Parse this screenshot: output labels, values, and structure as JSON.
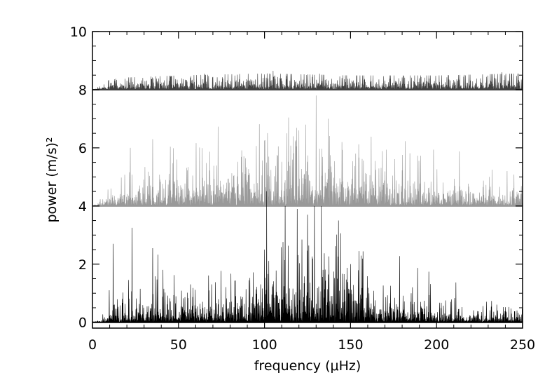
{
  "chart_data": {
    "type": "line",
    "xlabel": "frequency (μHz)",
    "ylabel": "power (m/s)²",
    "xlim": [
      0,
      250
    ],
    "ylim": [
      -0.2,
      10
    ],
    "x_ticks": [
      "0",
      "50",
      "100",
      "150",
      "200",
      "250"
    ],
    "y_ticks": [
      "0",
      "2",
      "4",
      "6",
      "8",
      "10"
    ],
    "grid": false,
    "legend": "none",
    "series": [
      {
        "offset": 8,
        "color": "#404040",
        "envelope": {
          "x": [
            0,
            5,
            10,
            20,
            50,
            100,
            150,
            200,
            250
          ],
          "y": [
            0,
            0.1,
            0.25,
            0.3,
            0.35,
            0.4,
            0.35,
            0.35,
            0.4
          ]
        },
        "peaks": [
          {
            "x": 105,
            "y": 0.65
          },
          {
            "x": 238,
            "y": 0.6
          },
          {
            "x": 65,
            "y": 0.55
          },
          {
            "x": 132,
            "y": 0.55
          }
        ]
      },
      {
        "offset": 4,
        "color": "#999999",
        "envelope": {
          "x": [
            0,
            5,
            10,
            20,
            40,
            60,
            80,
            95,
            110,
            125,
            135,
            150,
            165,
            180,
            200,
            220,
            250
          ],
          "y": [
            0,
            0.15,
            0.4,
            0.6,
            0.75,
            0.8,
            0.95,
            1.2,
            1.45,
            1.6,
            1.5,
            1.1,
            0.85,
            0.7,
            0.6,
            0.55,
            0.5
          ]
        },
        "peaks": [
          {
            "x": 130,
            "y": 3.8
          },
          {
            "x": 137,
            "y": 3.0
          },
          {
            "x": 124,
            "y": 2.8
          },
          {
            "x": 120,
            "y": 2.6
          },
          {
            "x": 113,
            "y": 2.5
          },
          {
            "x": 35,
            "y": 2.3
          },
          {
            "x": 100,
            "y": 2.25
          },
          {
            "x": 145,
            "y": 2.2
          },
          {
            "x": 22,
            "y": 2.0
          },
          {
            "x": 108,
            "y": 2.05
          },
          {
            "x": 153,
            "y": 1.8
          }
        ]
      },
      {
        "offset": 0,
        "color": "#000000",
        "envelope": {
          "x": [
            0,
            5,
            10,
            20,
            40,
            60,
            80,
            95,
            110,
            125,
            135,
            150,
            165,
            180,
            200,
            220,
            250
          ],
          "y": [
            0,
            0.1,
            0.35,
            0.55,
            0.65,
            0.7,
            0.85,
            1.1,
            1.6,
            1.9,
            1.8,
            1.2,
            0.75,
            0.6,
            0.5,
            0.4,
            0.35
          ]
        },
        "peaks": [
          {
            "x": 112,
            "y": 4.0
          },
          {
            "x": 129,
            "y": 4.0
          },
          {
            "x": 133,
            "y": 4.0
          },
          {
            "x": 119,
            "y": 3.9
          },
          {
            "x": 125,
            "y": 3.7
          },
          {
            "x": 143,
            "y": 3.5
          },
          {
            "x": 23,
            "y": 3.25
          },
          {
            "x": 12,
            "y": 2.7
          },
          {
            "x": 35,
            "y": 2.55
          },
          {
            "x": 100,
            "y": 2.5
          },
          {
            "x": 155,
            "y": 2.45
          },
          {
            "x": 150,
            "y": 2.0
          }
        ]
      }
    ]
  }
}
